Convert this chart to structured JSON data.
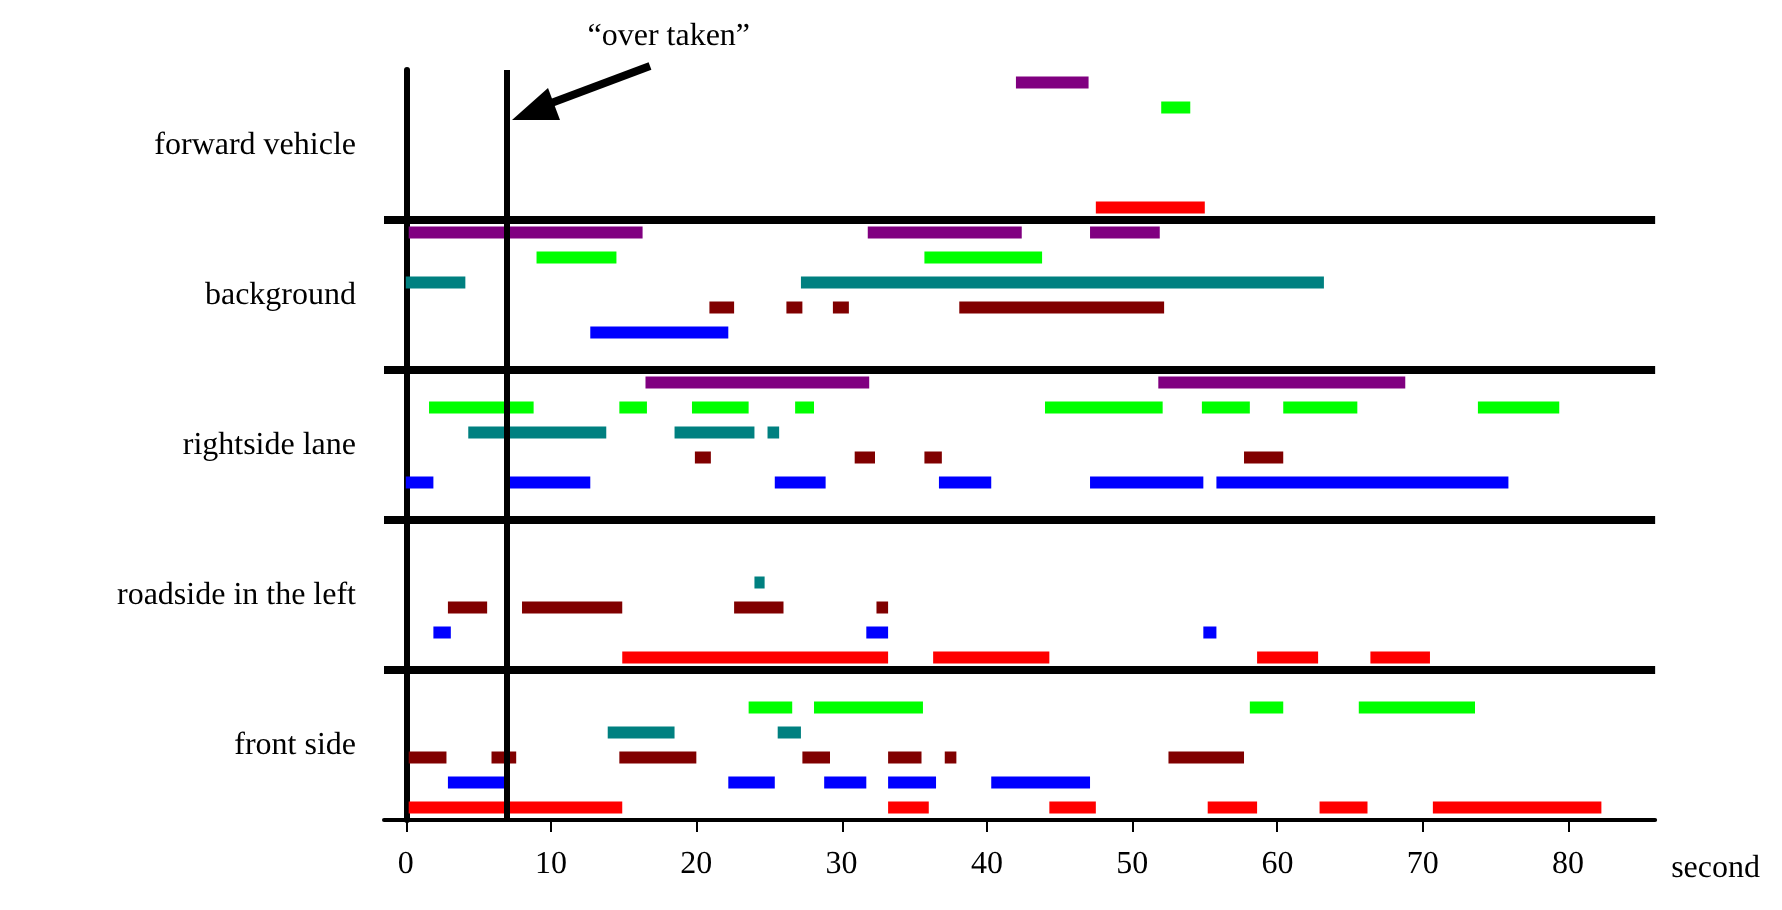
{
  "chart_data": {
    "type": "bar",
    "orientation": "horizontal",
    "xlabel": "second",
    "categories": [
      "forward vehicle",
      "background",
      "rightside lane",
      "roadside in the left",
      "front side"
    ],
    "xlim": [
      -1.5,
      86
    ],
    "xticks": [
      0,
      10,
      20,
      30,
      40,
      50,
      60,
      70,
      80
    ],
    "grid": "y",
    "ref_lines": [
      {
        "axis": "x",
        "value": 7,
        "label": "“over taken”",
        "color": "#000000"
      }
    ],
    "series": [
      {
        "color": "#800080",
        "base": [
          42,
          0.2,
          16.5,
          null,
          null
        ],
        "values": [
          5,
          16.1,
          15.4,
          null,
          null
        ]
      },
      {
        "color": "#800080",
        "base": [
          null,
          31.8,
          51.8,
          null,
          null
        ],
        "values": [
          null,
          10.6,
          17,
          null,
          null
        ]
      },
      {
        "color": "#800080",
        "base": [
          null,
          47.1,
          null,
          null,
          null
        ],
        "values": [
          null,
          4.8,
          null,
          null,
          null
        ]
      },
      {
        "color": "#00ff00",
        "base": [
          52,
          9,
          1.6,
          null,
          23.6
        ],
        "values": [
          2,
          5.5,
          7.2,
          null,
          3
        ]
      },
      {
        "color": "#00ff00",
        "base": [
          null,
          35.7,
          14.7,
          null,
          28.1
        ],
        "values": [
          null,
          8.1,
          1.9,
          null,
          7.5
        ]
      },
      {
        "color": "#00ff00",
        "base": [
          null,
          null,
          19.7,
          null,
          58.1
        ],
        "values": [
          null,
          null,
          3.9,
          null,
          2.3
        ]
      },
      {
        "color": "#00ff00",
        "base": [
          null,
          null,
          26.8,
          null,
          65.6
        ],
        "values": [
          null,
          null,
          1.3,
          null,
          8
        ]
      },
      {
        "color": "#00ff00",
        "base": [
          null,
          null,
          44,
          null,
          null
        ],
        "values": [
          null,
          null,
          8.1,
          null,
          null
        ]
      },
      {
        "color": "#00ff00",
        "base": [
          null,
          null,
          54.8,
          null,
          null
        ],
        "values": [
          null,
          null,
          3.3,
          null,
          null
        ]
      },
      {
        "color": "#00ff00",
        "base": [
          null,
          null,
          60.4,
          null,
          null
        ],
        "values": [
          null,
          null,
          5.1,
          null,
          null
        ]
      },
      {
        "color": "#00ff00",
        "base": [
          null,
          null,
          73.8,
          null,
          null
        ],
        "values": [
          null,
          null,
          5.6,
          null,
          null
        ]
      },
      {
        "color": "#008080",
        "base": [
          null,
          0,
          4.3,
          24,
          13.9
        ],
        "values": [
          null,
          4.1,
          9.5,
          0.7,
          4.6
        ]
      },
      {
        "color": "#008080",
        "base": [
          null,
          27.2,
          18.5,
          null,
          25.6
        ],
        "values": [
          null,
          36,
          5.5,
          null,
          1.6
        ]
      },
      {
        "color": "#008080",
        "base": [
          null,
          null,
          24.9,
          null,
          null
        ],
        "values": [
          null,
          null,
          0.8,
          null,
          null
        ]
      },
      {
        "color": "#800000",
        "base": [
          null,
          20.9,
          19.9,
          2.9,
          0.2
        ],
        "values": [
          null,
          1.7,
          1.1,
          2.7,
          2.6
        ]
      },
      {
        "color": "#800000",
        "base": [
          null,
          26.2,
          30.9,
          8,
          5.9
        ],
        "values": [
          null,
          1.1,
          1.4,
          6.9,
          1.7
        ]
      },
      {
        "color": "#800000",
        "base": [
          null,
          29.4,
          35.7,
          22.6,
          14.7
        ],
        "values": [
          null,
          1.1,
          1.2,
          3.4,
          5.3
        ]
      },
      {
        "color": "#800000",
        "base": [
          null,
          38.1,
          57.7,
          32.4,
          27.3
        ],
        "values": [
          null,
          14.1,
          2.7,
          0.8,
          1.9
        ]
      },
      {
        "color": "#800000",
        "base": [
          null,
          null,
          null,
          null,
          33.2
        ],
        "values": [
          null,
          null,
          null,
          null,
          2.3
        ]
      },
      {
        "color": "#800000",
        "base": [
          null,
          null,
          null,
          null,
          37.1
        ],
        "values": [
          null,
          null,
          null,
          null,
          0.8
        ]
      },
      {
        "color": "#800000",
        "base": [
          null,
          null,
          null,
          null,
          52.5
        ],
        "values": [
          null,
          null,
          null,
          null,
          5.2
        ]
      },
      {
        "color": "#0000ff",
        "base": [
          null,
          12.7,
          0,
          1.9,
          2.9
        ],
        "values": [
          null,
          9.5,
          1.9,
          1.2,
          3.9
        ]
      },
      {
        "color": "#0000ff",
        "base": [
          null,
          null,
          6.8,
          31.7,
          22.2
        ],
        "values": [
          null,
          null,
          5.9,
          1.5,
          3.2
        ]
      },
      {
        "color": "#0000ff",
        "base": [
          null,
          null,
          25.4,
          54.9,
          28.8
        ],
        "values": [
          null,
          null,
          3.5,
          0.9,
          2.9
        ]
      },
      {
        "color": "#0000ff",
        "base": [
          null,
          null,
          36.7,
          null,
          33.2
        ],
        "values": [
          null,
          null,
          3.6,
          null,
          3.3
        ]
      },
      {
        "color": "#0000ff",
        "base": [
          null,
          null,
          47.1,
          null,
          40.3
        ],
        "values": [
          null,
          null,
          7.8,
          null,
          6.8
        ]
      },
      {
        "color": "#0000ff",
        "base": [
          null,
          null,
          55.8,
          null,
          null
        ],
        "values": [
          null,
          null,
          20.1,
          null,
          null
        ]
      },
      {
        "color": "#ff0000",
        "base": [
          47.5,
          null,
          null,
          14.9,
          0.2
        ],
        "values": [
          7.5,
          null,
          null,
          18.3,
          14.7
        ]
      },
      {
        "color": "#ff0000",
        "base": [
          null,
          null,
          null,
          36.3,
          33.2
        ],
        "values": [
          null,
          null,
          null,
          8,
          2.8
        ]
      },
      {
        "color": "#ff0000",
        "base": [
          null,
          null,
          null,
          58.6,
          44.3
        ],
        "values": [
          null,
          null,
          null,
          4.2,
          3.2
        ]
      },
      {
        "color": "#ff0000",
        "base": [
          null,
          null,
          null,
          66.4,
          55.2
        ],
        "values": [
          null,
          null,
          null,
          4.1,
          3.4
        ]
      },
      {
        "color": "#ff0000",
        "base": [
          null,
          null,
          null,
          null,
          62.9
        ],
        "values": [
          null,
          null,
          null,
          null,
          3.3
        ]
      },
      {
        "color": "#ff0000",
        "base": [
          null,
          null,
          null,
          null,
          70.7
        ],
        "values": [
          null,
          null,
          null,
          null,
          11.6
        ]
      }
    ]
  }
}
